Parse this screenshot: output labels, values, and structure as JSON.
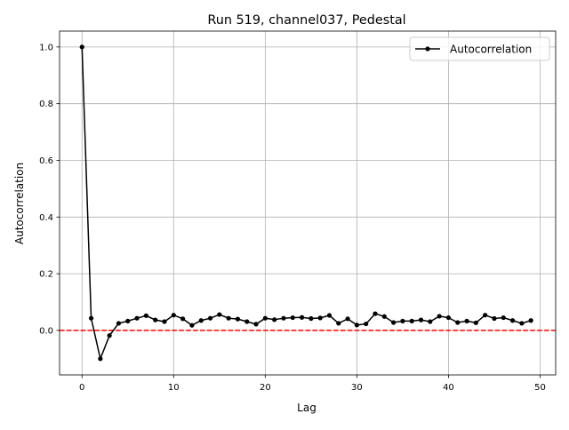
{
  "chart_data": {
    "type": "line",
    "title": "Run 519, channel037, Pedestal",
    "xlabel": "Lag",
    "ylabel": "Autocorrelation",
    "xlim": [
      -2.45,
      51.7
    ],
    "ylim": [
      -0.157,
      1.056
    ],
    "xticks": [
      0,
      10,
      20,
      30,
      40,
      50
    ],
    "yticks": [
      0.0,
      0.2,
      0.4,
      0.6,
      0.8,
      1.0
    ],
    "xtick_labels": [
      "0",
      "10",
      "20",
      "30",
      "40",
      "50"
    ],
    "ytick_labels": [
      "0.0",
      "0.2",
      "0.4",
      "0.6",
      "0.8",
      "1.0"
    ],
    "grid": true,
    "legend_placement": "upper-right",
    "series": [
      {
        "name": "Autocorrelation",
        "color": "#000000",
        "marker": "circle",
        "x": [
          0,
          1,
          2,
          3,
          4,
          5,
          6,
          7,
          8,
          9,
          10,
          11,
          12,
          13,
          14,
          15,
          16,
          17,
          18,
          19,
          20,
          21,
          22,
          23,
          24,
          25,
          26,
          27,
          28,
          29,
          30,
          31,
          32,
          33,
          34,
          35,
          36,
          37,
          38,
          39,
          40,
          41,
          42,
          43,
          44,
          45,
          46,
          47,
          48,
          49
        ],
        "values": [
          1.0,
          0.043,
          -0.1,
          -0.018,
          0.025,
          0.033,
          0.043,
          0.052,
          0.037,
          0.031,
          0.054,
          0.041,
          0.018,
          0.035,
          0.043,
          0.056,
          0.043,
          0.04,
          0.031,
          0.022,
          0.043,
          0.038,
          0.043,
          0.045,
          0.046,
          0.042,
          0.044,
          0.053,
          0.025,
          0.041,
          0.019,
          0.023,
          0.059,
          0.049,
          0.028,
          0.033,
          0.033,
          0.037,
          0.031,
          0.05,
          0.045,
          0.028,
          0.033,
          0.027,
          0.054,
          0.042,
          0.045,
          0.035,
          0.025,
          0.035
        ]
      }
    ],
    "reference_line": {
      "y": 0,
      "color": "#ff0000",
      "style": "dashed"
    }
  }
}
